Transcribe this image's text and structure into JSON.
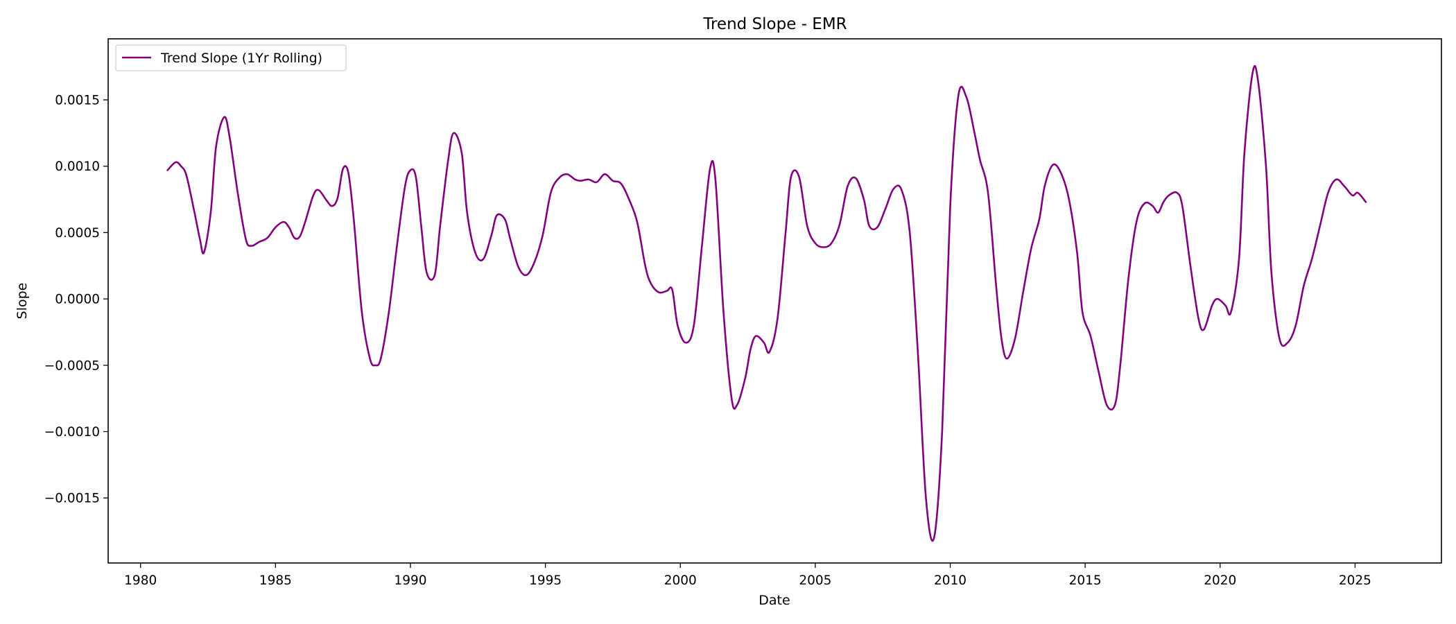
{
  "chart_data": {
    "type": "line",
    "title": "Trend Slope - EMR",
    "xlabel": "Date",
    "ylabel": "Slope",
    "xlim": [
      1978.8,
      2028.2
    ],
    "ylim": [
      -0.00199,
      0.00196
    ],
    "x_ticks": [
      1980,
      1985,
      1990,
      1995,
      2000,
      2005,
      2010,
      2015,
      2020,
      2025
    ],
    "x_tick_labels": [
      "1980",
      "1985",
      "1990",
      "1995",
      "2000",
      "2005",
      "2010",
      "2015",
      "2020",
      "2025"
    ],
    "y_ticks": [
      -0.0015,
      -0.001,
      -0.0005,
      0.0,
      0.0005,
      0.001,
      0.0015
    ],
    "y_tick_labels": [
      "−0.0015",
      "−0.0010",
      "−0.0005",
      "0.0000",
      "0.0005",
      "0.0010",
      "0.0015"
    ],
    "grid": false,
    "legend_position": "top-left",
    "series": [
      {
        "name": "Trend Slope (1Yr Rolling)",
        "color": "#800080",
        "x": [
          1981.0,
          1981.3,
          1981.5,
          1981.7,
          1982.0,
          1982.2,
          1982.35,
          1982.6,
          1982.8,
          1983.1,
          1983.3,
          1983.6,
          1983.9,
          1984.1,
          1984.4,
          1984.7,
          1985.0,
          1985.3,
          1985.5,
          1985.7,
          1985.9,
          1986.1,
          1986.4,
          1986.6,
          1986.9,
          1987.1,
          1987.3,
          1987.5,
          1987.7,
          1987.9,
          1988.2,
          1988.5,
          1988.7,
          1988.9,
          1989.2,
          1989.5,
          1989.8,
          1990.0,
          1990.2,
          1990.4,
          1990.6,
          1990.9,
          1991.1,
          1991.4,
          1991.6,
          1991.9,
          1992.1,
          1992.4,
          1992.7,
          1993.0,
          1993.2,
          1993.5,
          1993.7,
          1994.0,
          1994.3,
          1994.6,
          1994.9,
          1995.2,
          1995.5,
          1995.8,
          1996.1,
          1996.3,
          1996.6,
          1996.9,
          1997.2,
          1997.5,
          1997.8,
          1998.1,
          1998.4,
          1998.7,
          1998.9,
          1999.2,
          1999.5,
          1999.7,
          1999.9,
          2000.2,
          2000.5,
          2000.8,
          2001.1,
          2001.3,
          2001.6,
          2001.9,
          2002.1,
          2002.4,
          2002.6,
          2002.8,
          2003.1,
          2003.3,
          2003.6,
          2003.9,
          2004.1,
          2004.4,
          2004.7,
          2005.0,
          2005.3,
          2005.6,
          2005.9,
          2006.2,
          2006.5,
          2006.8,
          2007.0,
          2007.3,
          2007.6,
          2007.9,
          2008.2,
          2008.5,
          2008.8,
          2009.1,
          2009.4,
          2009.7,
          2010.0,
          2010.3,
          2010.6,
          2010.9,
          2011.1,
          2011.4,
          2011.7,
          2011.9,
          2012.1,
          2012.4,
          2012.7,
          2013.0,
          2013.3,
          2013.5,
          2013.8,
          2014.1,
          2014.4,
          2014.7,
          2014.9,
          2015.2,
          2015.5,
          2015.8,
          2016.1,
          2016.3,
          2016.6,
          2016.9,
          2017.2,
          2017.5,
          2017.7,
          2017.9,
          2018.1,
          2018.4,
          2018.6,
          2018.9,
          2019.2,
          2019.4,
          2019.7,
          2019.9,
          2020.2,
          2020.4,
          2020.7,
          2020.9,
          2021.2,
          2021.4,
          2021.7,
          2021.9,
          2022.2,
          2022.5,
          2022.8,
          2023.1,
          2023.4,
          2023.7,
          2024.0,
          2024.3,
          2024.6,
          2024.9,
          2025.1,
          2025.4
        ],
        "y": [
          0.00097,
          0.00103,
          0.001,
          0.00093,
          0.00065,
          0.00045,
          0.00035,
          0.00065,
          0.00115,
          0.00137,
          0.00122,
          0.0008,
          0.00045,
          0.0004,
          0.00043,
          0.00046,
          0.00054,
          0.00058,
          0.00054,
          0.00046,
          0.00047,
          0.00058,
          0.00078,
          0.00082,
          0.00074,
          0.0007,
          0.00076,
          0.00098,
          0.00095,
          0.0006,
          -0.0001,
          -0.00045,
          -0.0005,
          -0.00045,
          -0.0001,
          0.0004,
          0.00085,
          0.00097,
          0.00092,
          0.00055,
          0.0002,
          0.00018,
          0.00055,
          0.00105,
          0.00125,
          0.0011,
          0.00065,
          0.00035,
          0.0003,
          0.00048,
          0.00063,
          0.0006,
          0.00045,
          0.00024,
          0.00018,
          0.00028,
          0.00048,
          0.0008,
          0.00091,
          0.00094,
          0.0009,
          0.00089,
          0.0009,
          0.00088,
          0.00094,
          0.00089,
          0.00087,
          0.00075,
          0.00058,
          0.00025,
          0.00012,
          5e-05,
          6e-05,
          7e-05,
          -0.0002,
          -0.00033,
          -0.0002,
          0.0004,
          0.00098,
          0.0009,
          -0.0001,
          -0.00075,
          -0.0008,
          -0.0006,
          -0.00038,
          -0.00028,
          -0.00033,
          -0.0004,
          -0.00015,
          0.0005,
          0.00092,
          0.00092,
          0.00055,
          0.00042,
          0.00039,
          0.00042,
          0.00056,
          0.00085,
          0.00091,
          0.00075,
          0.00055,
          0.00054,
          0.00068,
          0.00083,
          0.00082,
          0.0005,
          -0.0004,
          -0.0015,
          -0.0018,
          -0.001,
          0.0007,
          0.00153,
          0.00152,
          0.00125,
          0.00105,
          0.0008,
          0.0001,
          -0.0003,
          -0.00045,
          -0.0003,
          5e-05,
          0.00038,
          0.0006,
          0.00085,
          0.00101,
          0.00095,
          0.00075,
          0.00035,
          -0.0001,
          -0.00028,
          -0.00055,
          -0.0008,
          -0.0008,
          -0.0005,
          0.00015,
          0.00058,
          0.00072,
          0.0007,
          0.00065,
          0.00073,
          0.00078,
          0.0008,
          0.0007,
          0.00025,
          -0.00015,
          -0.00023,
          -5e-05,
          0.0,
          -5e-05,
          -0.0001,
          0.0003,
          0.0011,
          0.0017,
          0.00165,
          0.001,
          0.0002,
          -0.0003,
          -0.00033,
          -0.0002,
          0.0001,
          0.0003,
          0.00055,
          0.0008,
          0.0009,
          0.00085,
          0.00078,
          0.0008,
          0.00073
        ]
      }
    ]
  }
}
